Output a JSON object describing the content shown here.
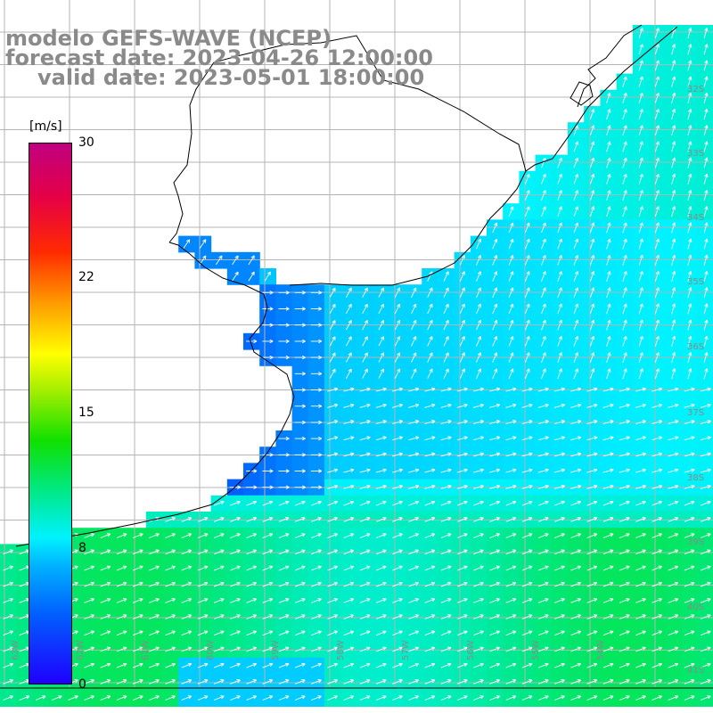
{
  "map": {
    "title": "modelo GEFS-WAVE (NCEP)",
    "forecast_date_label": "forecast date: 2023-04-26 12:00:00",
    "valid_date_label": "valid date: 2023-05-01 18:00:00",
    "variable": "wind speed and direction",
    "colorbar": {
      "unit_label": "[m/s]",
      "ticks": [
        "30",
        "22",
        "15",
        "8",
        "0"
      ],
      "tick_values": [
        30,
        22,
        15,
        8,
        0
      ],
      "min": 0,
      "max": 30,
      "colors": [
        "#1f00ff",
        "#0060ff",
        "#00b4ff",
        "#00f2ff",
        "#00e882",
        "#10e000",
        "#a0ee00",
        "#ffff00",
        "#ffa000",
        "#ff2a00",
        "#e60045",
        "#c00080"
      ]
    },
    "lat_labels": [
      "32S",
      "33S",
      "34S",
      "35S",
      "36S",
      "37S",
      "38S",
      "39S",
      "40S",
      "41S"
    ],
    "lat_values": [
      -32,
      -33,
      -34,
      -35,
      -36,
      -37,
      -38,
      -39,
      -40,
      -41
    ],
    "lon_labels": [
      "63W",
      "62W",
      "61W",
      "60W",
      "59W",
      "58W",
      "57W",
      "56W",
      "55W",
      "54W"
    ],
    "lon_values": [
      -63,
      -62,
      -61,
      -60,
      -59,
      -58,
      -57,
      -56,
      -55,
      -54
    ],
    "land_color": "#ffffff",
    "coastline_color": "#000000",
    "grid_color": "#b4b4b4",
    "arrow_color": "#ffffff"
  }
}
